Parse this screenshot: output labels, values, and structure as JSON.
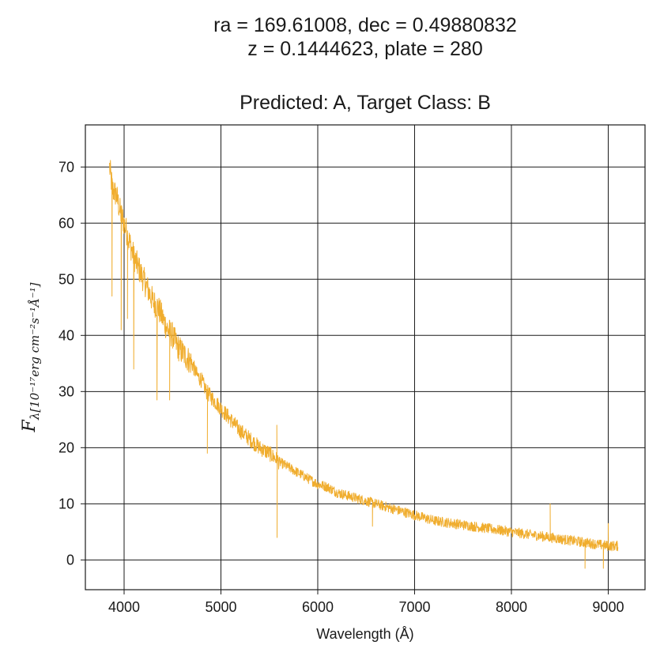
{
  "chart_data": {
    "type": "line",
    "title_line1": "ra = 169.61008, dec = 0.49880832",
    "title_line2": "z = 0.1444623, plate = 280",
    "title_line3": "Predicted: A, Target Class: B",
    "xlabel": "Wavelength (Å)",
    "ylabel_main": "F",
    "ylabel_sub": "λ[10⁻¹⁷erg cm⁻²s⁻¹Å⁻¹]",
    "xlim": [
      3600,
      9380
    ],
    "ylim": [
      -5.3,
      77.5
    ],
    "xticks": [
      4000,
      5000,
      6000,
      7000,
      8000,
      9000
    ],
    "yticks": [
      0,
      10,
      20,
      30,
      40,
      50,
      60,
      70
    ],
    "grid": true,
    "series": [
      {
        "name": "spectrum",
        "color": "#f0ad2e",
        "x": [
          3850,
          3880,
          3920,
          3960,
          4000,
          4050,
          4100,
          4150,
          4200,
          4250,
          4300,
          4350,
          4400,
          4450,
          4500,
          4550,
          4600,
          4650,
          4700,
          4750,
          4800,
          4850,
          4900,
          4950,
          5000,
          5100,
          5200,
          5300,
          5400,
          5500,
          5600,
          5700,
          5800,
          5900,
          6000,
          6100,
          6200,
          6300,
          6400,
          6500,
          6600,
          6700,
          6800,
          6900,
          7000,
          7200,
          7400,
          7600,
          7800,
          8000,
          8200,
          8400,
          8600,
          8800,
          9000,
          9100
        ],
        "y": [
          70,
          66,
          65,
          62,
          60,
          57,
          54,
          52,
          50,
          48,
          46,
          45,
          43,
          41,
          40,
          38,
          37,
          36,
          35,
          33,
          32,
          30,
          29,
          28,
          27,
          25,
          23,
          21.5,
          20,
          19,
          17.5,
          16.5,
          15.5,
          14.5,
          13.5,
          13,
          12,
          11.5,
          11,
          10.5,
          10,
          9.5,
          9,
          8.5,
          8,
          7,
          6.5,
          6,
          5.5,
          5,
          4.5,
          4,
          3.5,
          3,
          2.5,
          2.5
        ]
      }
    ],
    "spikes": [
      {
        "x": 3875,
        "y": 47
      },
      {
        "x": 3970,
        "y": 41
      },
      {
        "x": 4035,
        "y": 43
      },
      {
        "x": 4100,
        "y": 34
      },
      {
        "x": 4340,
        "y": 28.5
      },
      {
        "x": 4470,
        "y": 28.5
      },
      {
        "x": 4860,
        "y": 19
      },
      {
        "x": 5577,
        "y": 24
      },
      {
        "x": 5580,
        "y": 4
      },
      {
        "x": 6565,
        "y": 6
      },
      {
        "x": 8400,
        "y": 10
      },
      {
        "x": 8760,
        "y": -1.5
      },
      {
        "x": 8950,
        "y": -1.5
      },
      {
        "x": 9000,
        "y": 6.5
      }
    ]
  }
}
